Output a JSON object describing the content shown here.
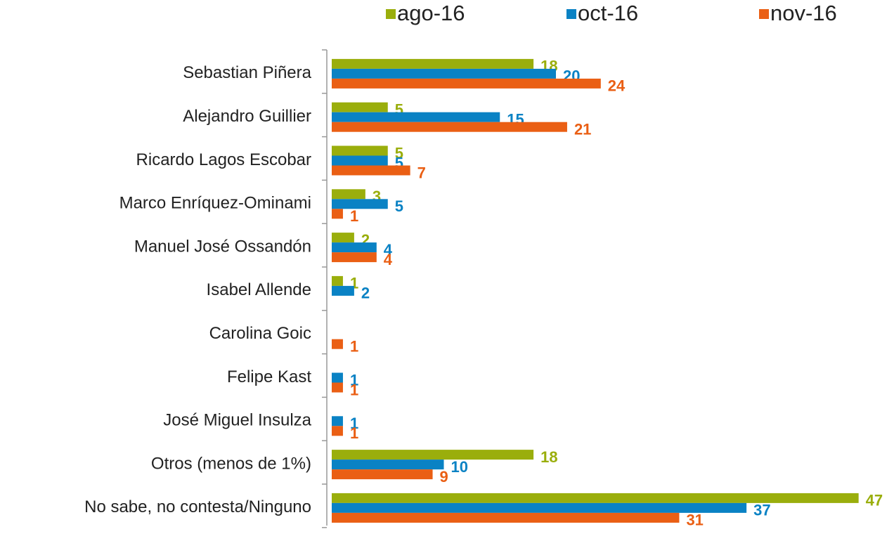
{
  "chart_data": {
    "type": "bar",
    "orientation": "horizontal",
    "categories": [
      "Sebastian Piñera",
      "Alejandro Guillier",
      "Ricardo Lagos Escobar",
      "Marco Enríquez-Ominami",
      "Manuel José Ossandón",
      "Isabel Allende",
      "Carolina Goic",
      "Felipe Kast",
      "José Miguel Insulza",
      "Otros (menos de 1%)",
      "No sabe, no contesta/Ninguno"
    ],
    "series": [
      {
        "name": "ago-16",
        "color": "#9aae0c",
        "values": [
          18,
          5,
          5,
          3,
          2,
          1,
          null,
          null,
          null,
          18,
          47
        ]
      },
      {
        "name": "oct-16",
        "color": "#0a82c4",
        "values": [
          20,
          15,
          5,
          5,
          4,
          2,
          null,
          1,
          1,
          10,
          37
        ]
      },
      {
        "name": "nov-16",
        "color": "#ea5f14",
        "values": [
          24,
          21,
          7,
          1,
          4,
          null,
          1,
          1,
          1,
          9,
          31
        ]
      }
    ],
    "legend": "top"
  }
}
